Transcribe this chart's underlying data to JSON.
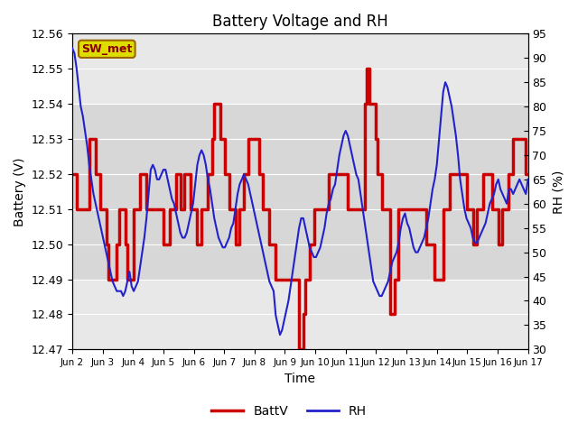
{
  "title": "Battery Voltage and RH",
  "xlabel": "Time",
  "ylabel_left": "Battery (V)",
  "ylabel_right": "RH (%)",
  "station_label": "SW_met",
  "ylim_left": [
    12.47,
    12.56
  ],
  "ylim_right": [
    30,
    95
  ],
  "yticks_left": [
    12.47,
    12.48,
    12.49,
    12.5,
    12.51,
    12.52,
    12.53,
    12.54,
    12.55,
    12.56
  ],
  "yticks_right": [
    30,
    35,
    40,
    45,
    50,
    55,
    60,
    65,
    70,
    75,
    80,
    85,
    90,
    95
  ],
  "xtick_labels": [
    "Jun 2",
    "Jun 3",
    "Jun 4",
    "Jun 5",
    "Jun 6",
    "Jun 7",
    "Jun 8",
    "Jun 9",
    "Jun 10",
    "Jun 11",
    "Jun 12",
    "Jun 13",
    "Jun 14",
    "Jun 15",
    "Jun 16",
    "Jun 17"
  ],
  "batt_color": "#cc0000",
  "rh_color": "#2222cc",
  "background_color": "#ffffff",
  "inner_bg_color": "#e8e8e8",
  "band_color": "#d0d0d0",
  "legend_batt": "BattV",
  "legend_rh": "RH",
  "band_low": 12.49,
  "band_high": 12.54,
  "batt_data": [
    12.52,
    12.52,
    12.51,
    12.51,
    12.51,
    12.51,
    12.51,
    12.51,
    12.53,
    12.53,
    12.53,
    12.52,
    12.52,
    12.51,
    12.51,
    12.51,
    12.5,
    12.49,
    12.49,
    12.49,
    12.49,
    12.5,
    12.51,
    12.51,
    12.51,
    12.5,
    12.49,
    12.49,
    12.49,
    12.51,
    12.51,
    12.51,
    12.52,
    12.52,
    12.52,
    12.51,
    12.51,
    12.51,
    12.51,
    12.51,
    12.51,
    12.51,
    12.51,
    12.5,
    12.5,
    12.5,
    12.51,
    12.51,
    12.51,
    12.52,
    12.52,
    12.51,
    12.51,
    12.52,
    12.52,
    12.52,
    12.51,
    12.51,
    12.51,
    12.5,
    12.5,
    12.51,
    12.51,
    12.51,
    12.52,
    12.52,
    12.53,
    12.54,
    12.54,
    12.54,
    12.53,
    12.53,
    12.52,
    12.52,
    12.51,
    12.51,
    12.51,
    12.5,
    12.5,
    12.51,
    12.51,
    12.52,
    12.52,
    12.53,
    12.53,
    12.53,
    12.53,
    12.53,
    12.52,
    12.52,
    12.51,
    12.51,
    12.51,
    12.5,
    12.5,
    12.5,
    12.49,
    12.49,
    12.49,
    12.49,
    12.49,
    12.49,
    12.49,
    12.49,
    12.49,
    12.49,
    12.49,
    12.47,
    12.47,
    12.48,
    12.49,
    12.49,
    12.5,
    12.5,
    12.51,
    12.51,
    12.51,
    12.51,
    12.51,
    12.51,
    12.51,
    12.52,
    12.52,
    12.52,
    12.52,
    12.52,
    12.52,
    12.52,
    12.52,
    12.52,
    12.51,
    12.51,
    12.51,
    12.51,
    12.51,
    12.51,
    12.51,
    12.51,
    12.54,
    12.55,
    12.54,
    12.54,
    12.54,
    12.53,
    12.52,
    12.52,
    12.51,
    12.51,
    12.51,
    12.51,
    12.48,
    12.48,
    12.49,
    12.49,
    12.51,
    12.51,
    12.51,
    12.51,
    12.51,
    12.51,
    12.51,
    12.51,
    12.51,
    12.51,
    12.51,
    12.51,
    12.51,
    12.5,
    12.5,
    12.5,
    12.5,
    12.49,
    12.49,
    12.49,
    12.49,
    12.51,
    12.51,
    12.51,
    12.52,
    12.52,
    12.52,
    12.52,
    12.52,
    12.52,
    12.52,
    12.52,
    12.51,
    12.51,
    12.51,
    12.5,
    12.5,
    12.51,
    12.51,
    12.51,
    12.52,
    12.52,
    12.52,
    12.52,
    12.51,
    12.51,
    12.51,
    12.5,
    12.5,
    12.51,
    12.51,
    12.51,
    12.52,
    12.52,
    12.53,
    12.53,
    12.53,
    12.53,
    12.53,
    12.53,
    12.52,
    12.52
  ],
  "rh_data": [
    92,
    91,
    88,
    84,
    80,
    78,
    75,
    72,
    68,
    65,
    62,
    60,
    58,
    56,
    54,
    52,
    50,
    48,
    46,
    44,
    43,
    42,
    42,
    42,
    41,
    42,
    44,
    46,
    43,
    42,
    43,
    44,
    47,
    50,
    53,
    57,
    62,
    67,
    68,
    67,
    65,
    65,
    66,
    67,
    67,
    65,
    63,
    61,
    60,
    58,
    56,
    54,
    53,
    53,
    54,
    56,
    58,
    60,
    64,
    68,
    70,
    71,
    70,
    68,
    65,
    63,
    60,
    57,
    55,
    53,
    52,
    51,
    51,
    52,
    53,
    55,
    56,
    59,
    62,
    64,
    65,
    66,
    65,
    64,
    62,
    60,
    58,
    56,
    54,
    52,
    50,
    48,
    46,
    44,
    43,
    42,
    37,
    35,
    33,
    34,
    36,
    38,
    40,
    43,
    46,
    49,
    52,
    55,
    57,
    57,
    55,
    53,
    51,
    50,
    49,
    49,
    50,
    51,
    53,
    55,
    58,
    60,
    61,
    63,
    64,
    67,
    70,
    72,
    74,
    75,
    74,
    72,
    70,
    68,
    66,
    65,
    62,
    59,
    56,
    53,
    50,
    47,
    44,
    43,
    42,
    41,
    41,
    42,
    43,
    44,
    46,
    48,
    49,
    50,
    52,
    55,
    57,
    58,
    56,
    55,
    53,
    51,
    50,
    50,
    51,
    52,
    53,
    55,
    57,
    60,
    63,
    65,
    68,
    73,
    78,
    83,
    85,
    84,
    82,
    80,
    77,
    74,
    70,
    65,
    62,
    59,
    57,
    56,
    55,
    53,
    52,
    52,
    53,
    54,
    55,
    56,
    58,
    60,
    61,
    62,
    64,
    65,
    63,
    62,
    61,
    60,
    63,
    63,
    62,
    63,
    64,
    65,
    64,
    63,
    62,
    65
  ]
}
